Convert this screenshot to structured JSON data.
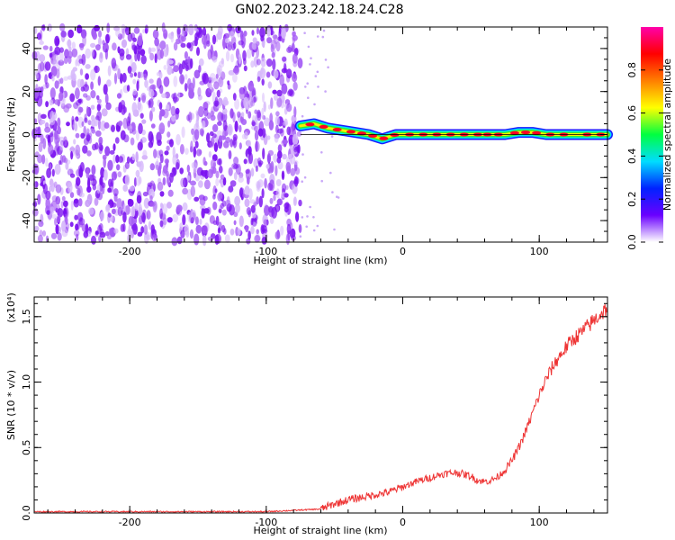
{
  "title": "GN02.2023.242.18.24.C28",
  "chart_data": [
    {
      "type": "heatmap",
      "xlabel": "Height of straight line (km)",
      "ylabel": "Frequency (Hz)",
      "xlim": [
        -270,
        150
      ],
      "ylim": [
        -50,
        50
      ],
      "x_ticks": [
        -200,
        -100,
        0,
        100
      ],
      "y_ticks": [
        -40,
        -20,
        0,
        20,
        40
      ],
      "colorbar": {
        "label": "Normalized spectral amplitude",
        "range": [
          0,
          1
        ],
        "ticks": [
          0.0,
          0.2,
          0.4,
          0.6,
          0.8
        ],
        "colors": [
          "#ffffff",
          "#6a00ff",
          "#0022ff",
          "#00ddff",
          "#00ff40",
          "#ffff00",
          "#ff7f00",
          "#ff0000",
          "#ff00aa"
        ]
      },
      "noise_region": {
        "x_range": [
          -270,
          -75
        ],
        "y_range": [
          -50,
          50
        ],
        "amplitude": 0.15
      },
      "signal_track": {
        "x_range": [
          -75,
          150
        ],
        "frequency_points": [
          [
            -75,
            4
          ],
          [
            -65,
            5
          ],
          [
            -55,
            3
          ],
          [
            -45,
            2
          ],
          [
            -35,
            1
          ],
          [
            -25,
            0
          ],
          [
            -15,
            -2
          ],
          [
            -5,
            0
          ],
          [
            0,
            0
          ],
          [
            20,
            0
          ],
          [
            40,
            0
          ],
          [
            60,
            0
          ],
          [
            75,
            0
          ],
          [
            85,
            1
          ],
          [
            95,
            1
          ],
          [
            105,
            0
          ],
          [
            115,
            0
          ],
          [
            130,
            0
          ],
          [
            150,
            0
          ]
        ],
        "peak_amplitude": 0.95
      }
    },
    {
      "type": "line",
      "xlabel": "Height of straight line (km)",
      "ylabel": "SNR (10 * v/v)",
      "y_multiplier": "(x10⁴)",
      "xlim": [
        -270,
        150
      ],
      "ylim": [
        0,
        1.65
      ],
      "x_ticks": [
        -200,
        -100,
        0,
        100
      ],
      "y_ticks": [
        0.0,
        0.5,
        1.0,
        1.5
      ],
      "color": "#ee3333",
      "series": [
        {
          "x": [
            -270,
            -200,
            -150,
            -100,
            -60,
            -50,
            -40,
            -30,
            -20,
            -10,
            0,
            10,
            20,
            30,
            40,
            50,
            55,
            60,
            65,
            70,
            75,
            80,
            85,
            90,
            95,
            100,
            105,
            110,
            115,
            120,
            125,
            130,
            135,
            140,
            145,
            150
          ],
          "values": [
            0.01,
            0.01,
            0.01,
            0.01,
            0.03,
            0.07,
            0.1,
            0.12,
            0.14,
            0.16,
            0.2,
            0.24,
            0.27,
            0.3,
            0.31,
            0.28,
            0.25,
            0.24,
            0.25,
            0.28,
            0.33,
            0.4,
            0.5,
            0.62,
            0.76,
            0.9,
            1.02,
            1.12,
            1.2,
            1.27,
            1.33,
            1.37,
            1.42,
            1.47,
            1.52,
            1.57
          ]
        }
      ]
    }
  ]
}
